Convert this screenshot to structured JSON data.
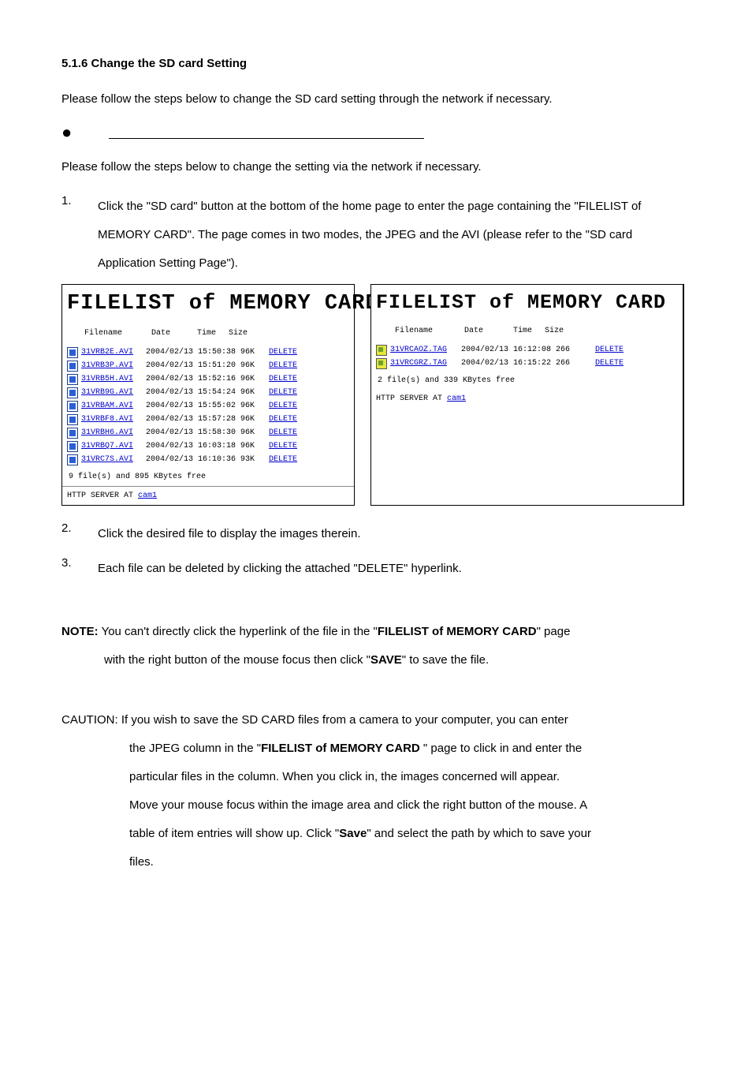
{
  "heading": "5.1.6  Change the SD card Setting",
  "intro1": "Please follow the steps below to change the SD card setting through the network if necessary.",
  "intro2": "Please follow the steps below to change the setting via the network if necessary.",
  "step1": "Click the \"SD card\" button at the bottom of the home page to enter the page containing the \"FILELIST of MEMORY CARD\". The page comes in two modes, the JPEG and the AVI (please refer to the \"SD card Application Setting Page\").",
  "step2": "Click the desired file to display the images therein.",
  "step3": "Each file can be deleted by clicking the attached \"DELETE\" hyperlink.",
  "panel": {
    "title_left": "FILELIST of MEMORY CARD",
    "title_right": "FILELIST of MEMORY CARD",
    "cols": {
      "name": "Filename",
      "date": "Date",
      "time": "Time",
      "size": "Size"
    },
    "delete_label": "DELETE",
    "server_prefix": "HTTP SERVER AT ",
    "server_link": "cam1",
    "left": {
      "files": [
        {
          "name": "31VRB2E.AVI",
          "meta": "2004/02/13 15:50:38 96K"
        },
        {
          "name": "31VRB3P.AVI",
          "meta": "2004/02/13 15:51:20 96K"
        },
        {
          "name": "31VRB5H.AVI",
          "meta": "2004/02/13 15:52:16 96K"
        },
        {
          "name": "31VRB9G.AVI",
          "meta": "2004/02/13 15:54:24 96K"
        },
        {
          "name": "31VRBAM.AVI",
          "meta": "2004/02/13 15:55:02 96K"
        },
        {
          "name": "31VRBF8.AVI",
          "meta": "2004/02/13 15:57:28 96K"
        },
        {
          "name": "31VRBH6.AVI",
          "meta": "2004/02/13 15:58:30 96K"
        },
        {
          "name": "31VRBQ7.AVI",
          "meta": "2004/02/13 16:03:18 96K"
        },
        {
          "name": "31VRC7S.AVI",
          "meta": "2004/02/13 16:10:36 93K"
        }
      ],
      "summary": "9 file(s) and 895 KBytes free"
    },
    "right": {
      "files": [
        {
          "name": "31VRCAOZ.TAG",
          "meta": "2004/02/13 16:12:08 266"
        },
        {
          "name": "31VRCGRZ.TAG",
          "meta": "2004/02/13 16:15:22 266"
        }
      ],
      "summary": "2 file(s) and 339 KBytes free"
    }
  },
  "note": {
    "label": "NOTE:",
    "line1": " You can't directly click the hyperlink of the file in the \"",
    "bold1": "FILELIST of MEMORY CARD",
    "line1b": "\" page",
    "line2a": "with the right button of the mouse focus then click \"",
    "bold2": "SAVE",
    "line2b": "\" to save the file."
  },
  "caution": {
    "label": "CAUTION:",
    "line1": " If you wish to save the SD CARD files from a camera to your computer, you can enter",
    "line2a": "the JPEG column in the \"",
    "bold1": "FILELIST of MEMORY CARD ",
    "line2b": "\" page to click in and enter the",
    "line3": "particular files in the column. When you click in, the images concerned will appear.",
    "line4": "Move your mouse focus within the image area and click the right button of the mouse. A",
    "line5a": "table of item entries will show up. Click \"",
    "bold2": "Save",
    "line5b": "\" and select the path by which to save your",
    "line6": "files."
  }
}
